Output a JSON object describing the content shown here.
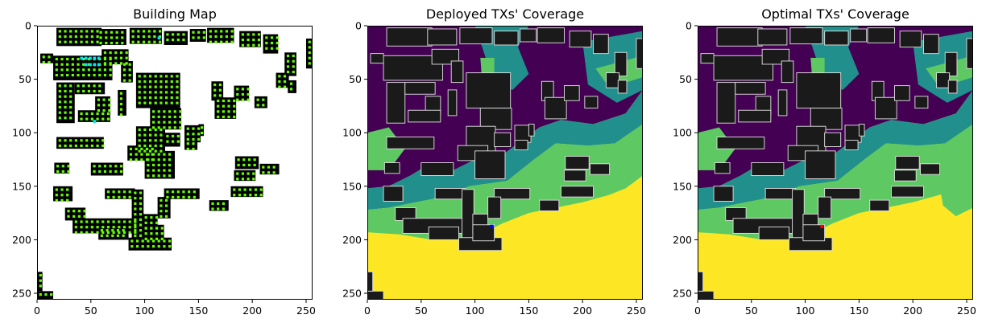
{
  "chart_data": [
    {
      "type": "heatmap",
      "title": "Building Map",
      "xlim": [
        0,
        256
      ],
      "ylim": [
        256,
        0
      ],
      "x_ticks": [
        0,
        50,
        100,
        150,
        200,
        250
      ],
      "y_ticks": [
        0,
        50,
        100,
        150,
        200,
        250
      ],
      "colors": {
        "background": "#ffffff",
        "building": "#000000",
        "candidate_site": "#66ff00",
        "deployed_site": "#00e5ff"
      }
    },
    {
      "type": "heatmap",
      "title": "Deployed TXs' Coverage",
      "xlim": [
        0,
        256
      ],
      "ylim": [
        256,
        0
      ],
      "x_ticks": [
        0,
        50,
        100,
        150,
        200,
        250
      ],
      "y_ticks": [
        0,
        50,
        100,
        150,
        200,
        250
      ],
      "colors": {
        "no_coverage": "#440154",
        "low": "#21908d",
        "mid": "#5ec962",
        "high": "#fde725",
        "building": "#1a1a1a",
        "tx": "#0000ff"
      }
    },
    {
      "type": "heatmap",
      "title": "Optimal TXs' Coverage",
      "xlim": [
        0,
        256
      ],
      "ylim": [
        256,
        0
      ],
      "x_ticks": [
        0,
        50,
        100,
        150,
        200,
        250
      ],
      "y_ticks": [
        0,
        50,
        100,
        150,
        200,
        250
      ],
      "colors": {
        "no_coverage": "#440154",
        "low": "#21908d",
        "mid": "#5ec962",
        "high": "#fde725",
        "building": "#1a1a1a",
        "tx": "#ff0000"
      }
    }
  ]
}
